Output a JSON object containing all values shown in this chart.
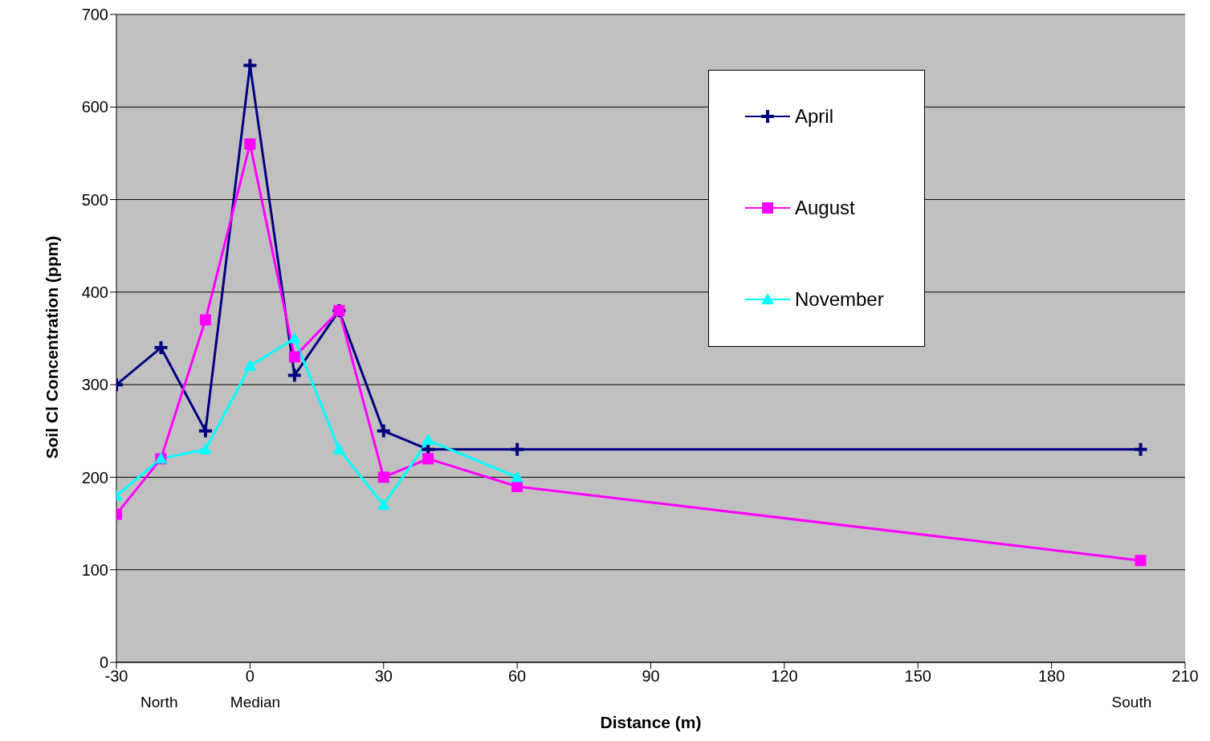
{
  "chart_data": {
    "type": "line",
    "xlabel": "Distance (m)",
    "ylabel": "Soil Cl Concentration (ppm)",
    "xlim": [
      -30,
      210
    ],
    "xticks": [
      -30,
      0,
      30,
      60,
      90,
      120,
      150,
      180,
      210
    ],
    "ylim": [
      0,
      700
    ],
    "yticks": [
      0,
      100,
      200,
      300,
      400,
      500,
      600,
      700
    ],
    "grid": "y",
    "legend": "top right",
    "annotations": [
      "North",
      "Median",
      "South"
    ],
    "series": [
      {
        "name": "April",
        "color": "#000080",
        "marker": "cross",
        "x": [
          -30,
          -20,
          -10,
          0,
          10,
          20,
          30,
          40,
          60,
          200
        ],
        "values": [
          300,
          340,
          250,
          645,
          310,
          380,
          250,
          230,
          230,
          230
        ]
      },
      {
        "name": "August",
        "color": "#ff00ff",
        "marker": "square",
        "x": [
          -30,
          -20,
          -10,
          0,
          10,
          20,
          30,
          40,
          60,
          200
        ],
        "values": [
          160,
          220,
          370,
          560,
          330,
          380,
          200,
          220,
          190,
          110
        ]
      },
      {
        "name": "November",
        "color": "#00ffff",
        "marker": "triangle",
        "x": [
          -30,
          -20,
          -10,
          0,
          10,
          20,
          30,
          40,
          60
        ],
        "values": [
          180,
          220,
          230,
          320,
          350,
          230,
          170,
          240,
          200
        ]
      }
    ]
  }
}
